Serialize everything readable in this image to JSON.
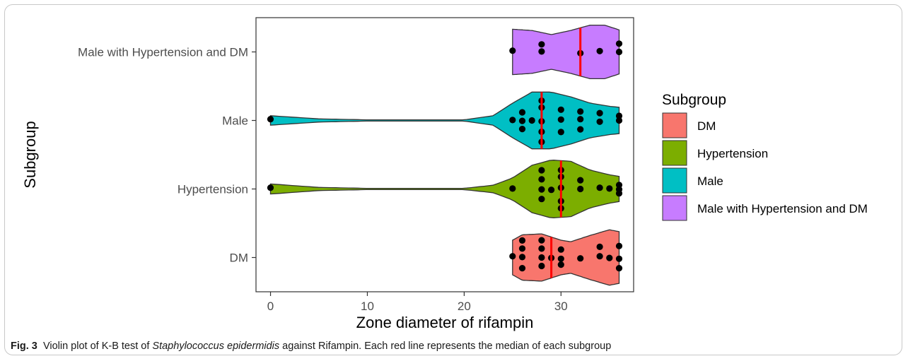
{
  "caption": {
    "figure_label": "Fig. 3",
    "text_before": "Violin plot of K-B test of ",
    "species": "Staphylococcus epidermidis",
    "text_after": " against Rifampin. Each red line represents the median of each subgroup"
  },
  "chart_data": {
    "type": "violin",
    "orientation": "horizontal",
    "xlabel": "Zone diameter of rifampin",
    "ylabel": "Subgroup",
    "xlim": [
      -1.5,
      37.5
    ],
    "xticks": [
      0,
      10,
      20,
      30
    ],
    "categories": [
      "DM",
      "Hypertension",
      "Male",
      "Male with Hypertension and DM"
    ],
    "grid": false,
    "legend": {
      "title": "Subgroup",
      "placement": "right",
      "entries": [
        "DM",
        "Hypertension",
        "Male",
        "Male with Hypertension and DM"
      ]
    },
    "colors": {
      "DM": "#F8766D",
      "Hypertension": "#7CAE00",
      "Male": "#00BFC4",
      "Male with Hypertension and DM": "#C77CFF",
      "median_line": "#FF0000",
      "points": "#000000"
    },
    "series": [
      {
        "category": "DM",
        "median": 29,
        "range": [
          25,
          36
        ],
        "density": [
          [
            25,
            0.55
          ],
          [
            26,
            0.72
          ],
          [
            28,
            0.75
          ],
          [
            30,
            0.55
          ],
          [
            31,
            0.5
          ],
          [
            33,
            0.7
          ],
          [
            35,
            0.88
          ],
          [
            36,
            0.82
          ]
        ],
        "points": [
          25,
          26,
          26,
          26,
          26,
          28,
          28,
          28,
          28,
          29,
          30,
          30,
          30,
          32,
          34,
          34,
          35,
          36,
          36,
          36
        ]
      },
      {
        "category": "Hypertension",
        "median": 30,
        "range": [
          0,
          36
        ],
        "density": [
          [
            0,
            0.16
          ],
          [
            5,
            0.05
          ],
          [
            10,
            0.02
          ],
          [
            20,
            0.02
          ],
          [
            23,
            0.12
          ],
          [
            25,
            0.35
          ],
          [
            27,
            0.75
          ],
          [
            29,
            0.92
          ],
          [
            31,
            0.88
          ],
          [
            33,
            0.6
          ],
          [
            35,
            0.45
          ],
          [
            36,
            0.4
          ]
        ],
        "points": [
          0,
          25,
          28,
          28,
          28,
          28,
          29,
          30,
          30,
          30,
          30,
          30,
          32,
          32,
          34,
          35,
          36,
          36,
          36
        ]
      },
      {
        "category": "Male",
        "median": 28,
        "range": [
          0,
          36
        ],
        "density": [
          [
            0,
            0.15
          ],
          [
            5,
            0.05
          ],
          [
            10,
            0.02
          ],
          [
            20,
            0.02
          ],
          [
            23,
            0.15
          ],
          [
            25,
            0.55
          ],
          [
            27,
            0.9
          ],
          [
            29,
            0.9
          ],
          [
            31,
            0.75
          ],
          [
            33,
            0.55
          ],
          [
            35,
            0.45
          ],
          [
            36,
            0.42
          ]
        ],
        "points": [
          0,
          25,
          26,
          26,
          26,
          27,
          28,
          28,
          28,
          28,
          28,
          30,
          30,
          30,
          32,
          32,
          32,
          34,
          34,
          36,
          36
        ]
      },
      {
        "category": "Male with Hypertension and DM",
        "median": 32,
        "range": [
          25,
          36
        ],
        "density": [
          [
            25,
            0.72
          ],
          [
            27,
            0.68
          ],
          [
            29,
            0.55
          ],
          [
            31,
            0.68
          ],
          [
            33,
            0.85
          ],
          [
            34.5,
            0.85
          ],
          [
            36,
            0.7
          ]
        ],
        "points": [
          25,
          28,
          28,
          32,
          34,
          36,
          36
        ]
      }
    ]
  }
}
